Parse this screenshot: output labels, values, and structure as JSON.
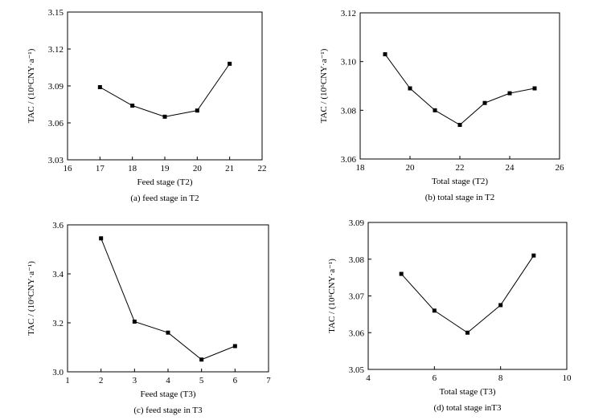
{
  "chart_data": [
    {
      "type": "line",
      "xlabel": "Feed stage (T2)",
      "ylabel": "TAC / (10⁶CNY·a⁻¹)",
      "caption": "(a) feed stage in T2",
      "xlim": [
        16,
        22
      ],
      "ylim": [
        3.03,
        3.15
      ],
      "xticks": [
        "16",
        "17",
        "18",
        "19",
        "20",
        "21",
        "22"
      ],
      "yticks": [
        "3.03",
        "3.06",
        "3.09",
        "3.12",
        "3.15"
      ],
      "x": [
        17,
        18,
        19,
        20,
        21
      ],
      "y": [
        3.089,
        3.074,
        3.065,
        3.07,
        3.108
      ]
    },
    {
      "type": "line",
      "xlabel": "Total stage (T2)",
      "ylabel": "TAC / (10⁶CNY·a⁻¹)",
      "caption": "(b) total stage in T2",
      "xlim": [
        18,
        26
      ],
      "ylim": [
        3.06,
        3.12
      ],
      "xticks": [
        "18",
        "20",
        "22",
        "24",
        "26"
      ],
      "yticks": [
        "3.06",
        "3.08",
        "3.10",
        "3.12"
      ],
      "x": [
        19,
        20,
        21,
        22,
        23,
        24,
        25
      ],
      "y": [
        3.103,
        3.089,
        3.08,
        3.074,
        3.083,
        3.087,
        3.089
      ]
    },
    {
      "type": "line",
      "xlabel": "Feed stage (T3)",
      "ylabel": "TAC / (10⁶CNY·a⁻¹)",
      "caption": "(c) feed stage in T3",
      "xlim": [
        1,
        7
      ],
      "ylim": [
        3.0,
        3.6
      ],
      "xticks": [
        "1",
        "2",
        "3",
        "4",
        "5",
        "6",
        "7"
      ],
      "yticks": [
        "3.0",
        "3.2",
        "3.4",
        "3.6"
      ],
      "x": [
        2,
        3,
        4,
        5,
        6
      ],
      "y": [
        3.545,
        3.205,
        3.16,
        3.05,
        3.105
      ]
    },
    {
      "type": "line",
      "xlabel": "Total stage (T3)",
      "ylabel": "TAC / (10⁶CNY·a⁻¹)",
      "caption": "(d) total stage inT3",
      "xlim": [
        4,
        10
      ],
      "ylim": [
        3.05,
        3.09
      ],
      "xticks": [
        "4",
        "6",
        "8",
        "10"
      ],
      "yticks": [
        "3.05",
        "3.06",
        "3.07",
        "3.08",
        "3.09"
      ],
      "x": [
        5,
        6,
        7,
        8,
        9
      ],
      "y": [
        3.076,
        3.066,
        3.06,
        3.0675,
        3.081
      ]
    }
  ]
}
